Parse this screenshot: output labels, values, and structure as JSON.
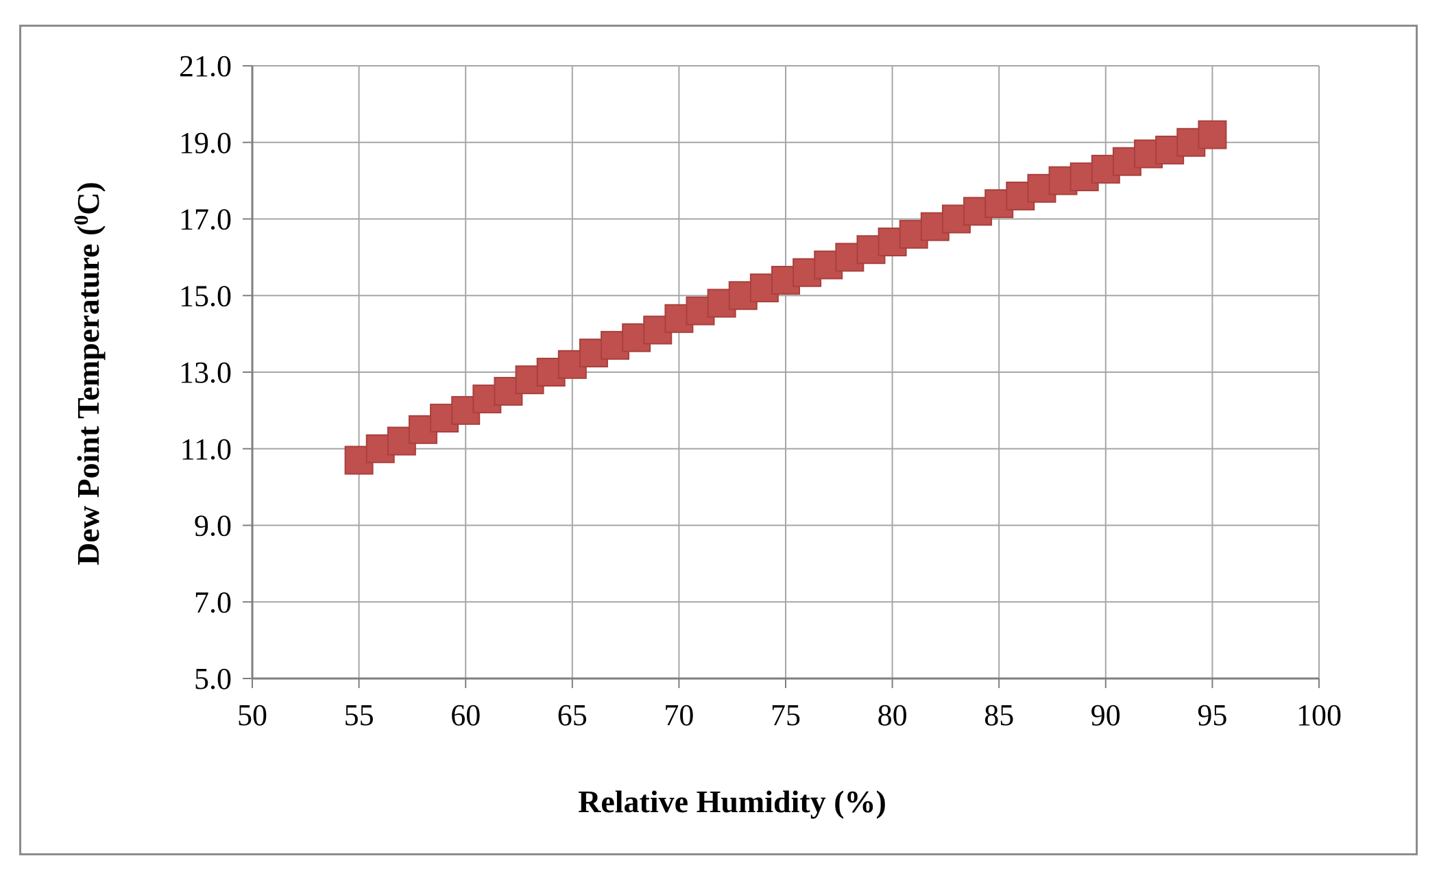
{
  "chart_data": {
    "type": "scatter",
    "xlabel": "Relative Humidity  (%)",
    "ylabel_main": "Dew Point Temperature  (",
    "ylabel_sup": "0",
    "ylabel_end": "C)",
    "xlim": [
      50,
      100
    ],
    "ylim": [
      5.0,
      21.0
    ],
    "x_ticks": [
      "50",
      "55",
      "60",
      "65",
      "70",
      "75",
      "80",
      "85",
      "90",
      "95",
      "100"
    ],
    "y_ticks": [
      "5.0",
      "7.0",
      "9.0",
      "11.0",
      "13.0",
      "15.0",
      "17.0",
      "19.0",
      "21.0"
    ],
    "grid": true,
    "legend": "none",
    "marker": "square",
    "marker_color": "#c0504d",
    "series": [
      {
        "x": [
          55,
          56,
          57,
          58,
          59,
          60,
          61,
          62,
          63,
          64,
          65,
          66,
          67,
          68,
          69,
          70,
          71,
          72,
          73,
          74,
          75,
          76,
          77,
          78,
          79,
          80,
          81,
          82,
          83,
          84,
          85,
          86,
          87,
          88,
          89,
          90,
          91,
          92,
          93,
          94,
          95
        ],
        "y": [
          10.7,
          11.0,
          11.2,
          11.5,
          11.8,
          12.0,
          12.3,
          12.5,
          12.8,
          13.0,
          13.2,
          13.5,
          13.7,
          13.9,
          14.1,
          14.4,
          14.6,
          14.8,
          15.0,
          15.2,
          15.4,
          15.6,
          15.8,
          16.0,
          16.2,
          16.4,
          16.6,
          16.8,
          17.0,
          17.2,
          17.4,
          17.6,
          17.8,
          18.0,
          18.1,
          18.3,
          18.5,
          18.7,
          18.8,
          19.0,
          19.2
        ]
      }
    ]
  }
}
